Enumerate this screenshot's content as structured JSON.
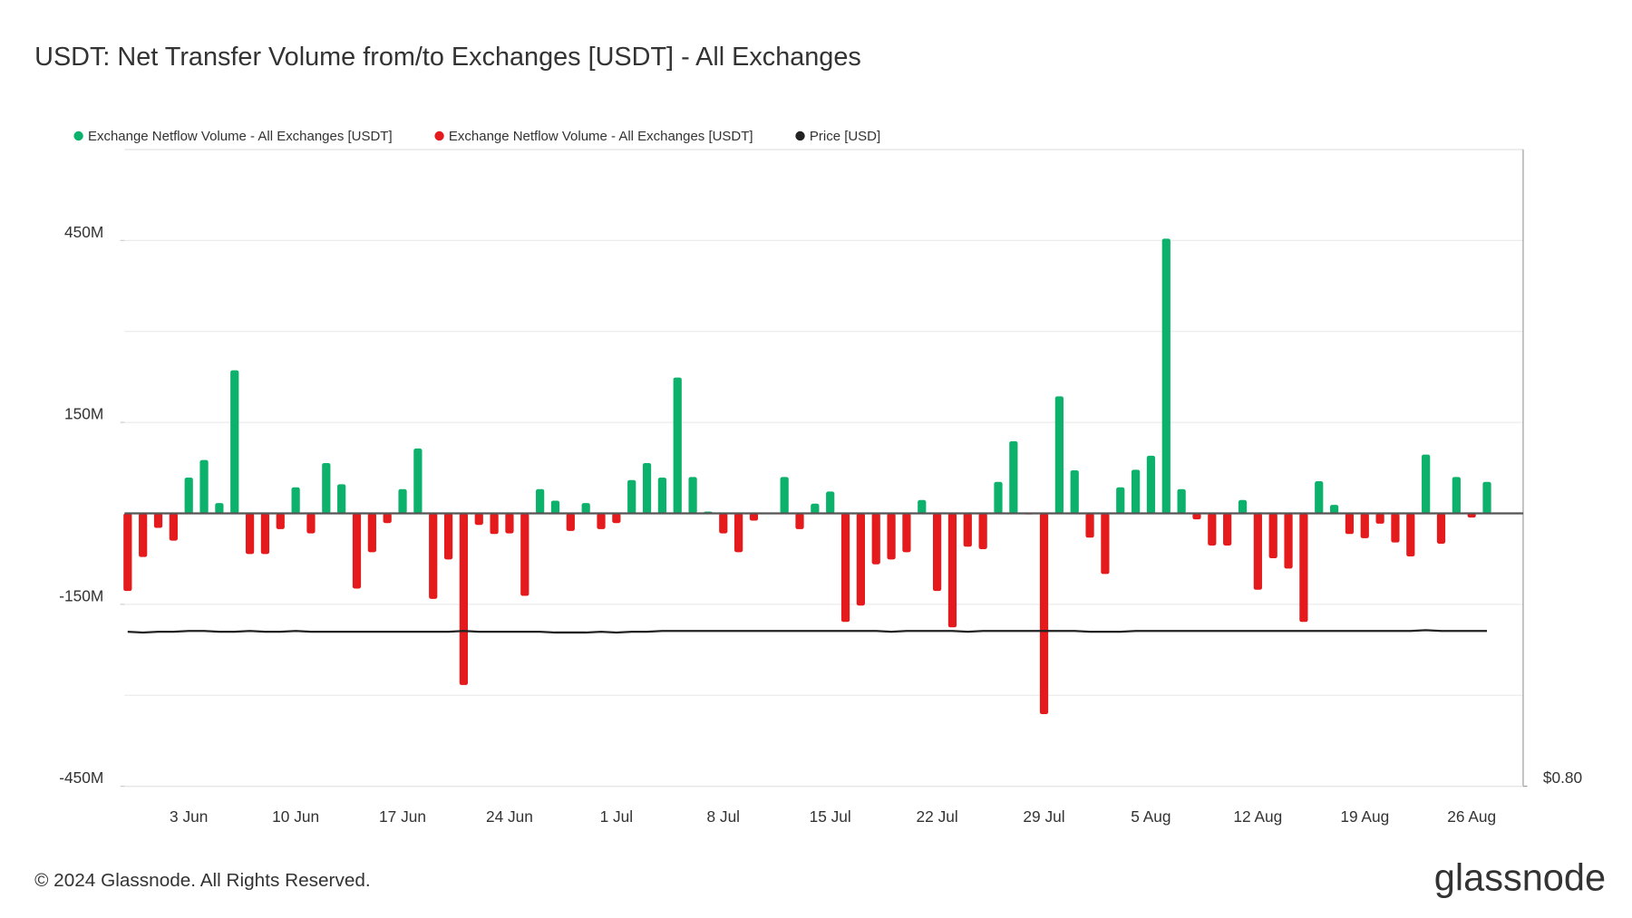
{
  "chart_data": {
    "type": "bar",
    "title": "USDT: Net Transfer Volume from/to Exchanges [USDT] - All Exchanges",
    "copyright": "© 2024 Glassnode. All Rights Reserved.",
    "brand": "glassnode",
    "categories": [
      null,
      null,
      null,
      null,
      "3 Jun",
      null,
      null,
      null,
      null,
      null,
      null,
      "10 Jun",
      null,
      null,
      null,
      null,
      null,
      null,
      "17 Jun",
      null,
      null,
      null,
      null,
      null,
      null,
      "24 Jun",
      null,
      null,
      null,
      null,
      null,
      null,
      "1 Jul",
      null,
      null,
      null,
      null,
      null,
      null,
      "8 Jul",
      null,
      null,
      null,
      null,
      null,
      null,
      "15 Jul",
      null,
      null,
      null,
      null,
      null,
      null,
      "22 Jul",
      null,
      null,
      null,
      null,
      null,
      null,
      "29 Jul",
      null,
      null,
      null,
      null,
      null,
      null,
      "5 Aug",
      null,
      null,
      null,
      null,
      null,
      null,
      "12 Aug",
      null,
      null,
      null,
      null,
      null,
      null,
      "19 Aug",
      null,
      null,
      null,
      null,
      null,
      null,
      "26 Aug",
      null
    ],
    "series": [
      {
        "name": "Exchange Netflow Volume - All Exchanges [USDT]",
        "color": "#0cb26b",
        "values": [
          null,
          null,
          null,
          null,
          59,
          88,
          17,
          236,
          null,
          null,
          null,
          43,
          null,
          83,
          48,
          null,
          null,
          null,
          40,
          107,
          null,
          null,
          null,
          null,
          null,
          null,
          null,
          40,
          21,
          null,
          17,
          null,
          null,
          55,
          83,
          59,
          224,
          60,
          3,
          null,
          null,
          null,
          1,
          60,
          null,
          16,
          36,
          null,
          null,
          null,
          null,
          null,
          22,
          null,
          null,
          null,
          null,
          52,
          119,
          null,
          null,
          193,
          71,
          null,
          null,
          43,
          72,
          95,
          453,
          40,
          null,
          null,
          null,
          22,
          null,
          null,
          null,
          null,
          53,
          14,
          null,
          null,
          null,
          null,
          null,
          97,
          null,
          60,
          null,
          52
        ]
      },
      {
        "name": "Exchange Netflow Volume - All Exchanges [USDT]",
        "color": "#e41a1c",
        "values": [
          -128,
          -72,
          -24,
          -45,
          null,
          null,
          null,
          null,
          -67,
          -67,
          -26,
          null,
          -33,
          null,
          null,
          -124,
          -64,
          -16,
          null,
          null,
          -141,
          -76,
          -283,
          -19,
          -34,
          -33,
          -136,
          null,
          null,
          -29,
          null,
          -26,
          -16,
          null,
          null,
          null,
          null,
          null,
          null,
          -33,
          -64,
          -12,
          null,
          null,
          -26,
          null,
          null,
          -179,
          -152,
          -84,
          -76,
          -64,
          null,
          -128,
          -188,
          -55,
          -59,
          null,
          null,
          -1,
          -331,
          null,
          null,
          -40,
          -100,
          null,
          null,
          null,
          null,
          null,
          -10,
          -53,
          -53,
          null,
          -126,
          -74,
          -91,
          -179,
          null,
          null,
          -34,
          -41,
          -17,
          -48,
          -71,
          null,
          -50,
          null,
          -7,
          null
        ]
      },
      {
        "name": "Price [USD]",
        "color": "#222222",
        "axis": "y2",
        "values": [
          0.999,
          0.998,
          0.999,
          0.999,
          1.0,
          1.0,
          0.999,
          0.999,
          1.0,
          0.999,
          0.999,
          1.0,
          0.999,
          0.999,
          0.999,
          0.999,
          0.999,
          0.999,
          0.999,
          0.999,
          0.999,
          0.999,
          1.0,
          0.999,
          0.999,
          0.999,
          0.999,
          0.999,
          0.998,
          0.998,
          0.998,
          0.999,
          0.998,
          0.999,
          0.999,
          1.0,
          1.0,
          1.0,
          1.0,
          1.0,
          1.0,
          1.0,
          1.0,
          1.0,
          1.0,
          1.0,
          1.0,
          1.0,
          1.0,
          1.0,
          0.999,
          1.0,
          1.0,
          1.0,
          1.0,
          0.999,
          1.0,
          1.0,
          1.0,
          1.0,
          1.0,
          1.0,
          1.0,
          0.999,
          0.999,
          0.999,
          1.0,
          1.0,
          1.0,
          1.0,
          1.0,
          1.0,
          1.0,
          1.0,
          1.0,
          1.0,
          1.0,
          1.0,
          1.0,
          1.0,
          1.0,
          1.0,
          1.0,
          1.0,
          1.0,
          1.001,
          1.0,
          1.0,
          1.0,
          1.0
        ]
      }
    ],
    "ylim": [
      -450,
      600
    ],
    "yticks": [
      {
        "value": 450,
        "label": "450M"
      },
      {
        "value": 150,
        "label": "150M"
      },
      {
        "value": -150,
        "label": "-150M"
      },
      {
        "value": -450,
        "label": "-450M"
      }
    ],
    "grid_step": 150,
    "y2lim": [
      0.8,
      1.62
    ],
    "y2ticks": [
      {
        "value": 0.8,
        "label": "$0.80"
      }
    ],
    "grid": true
  }
}
